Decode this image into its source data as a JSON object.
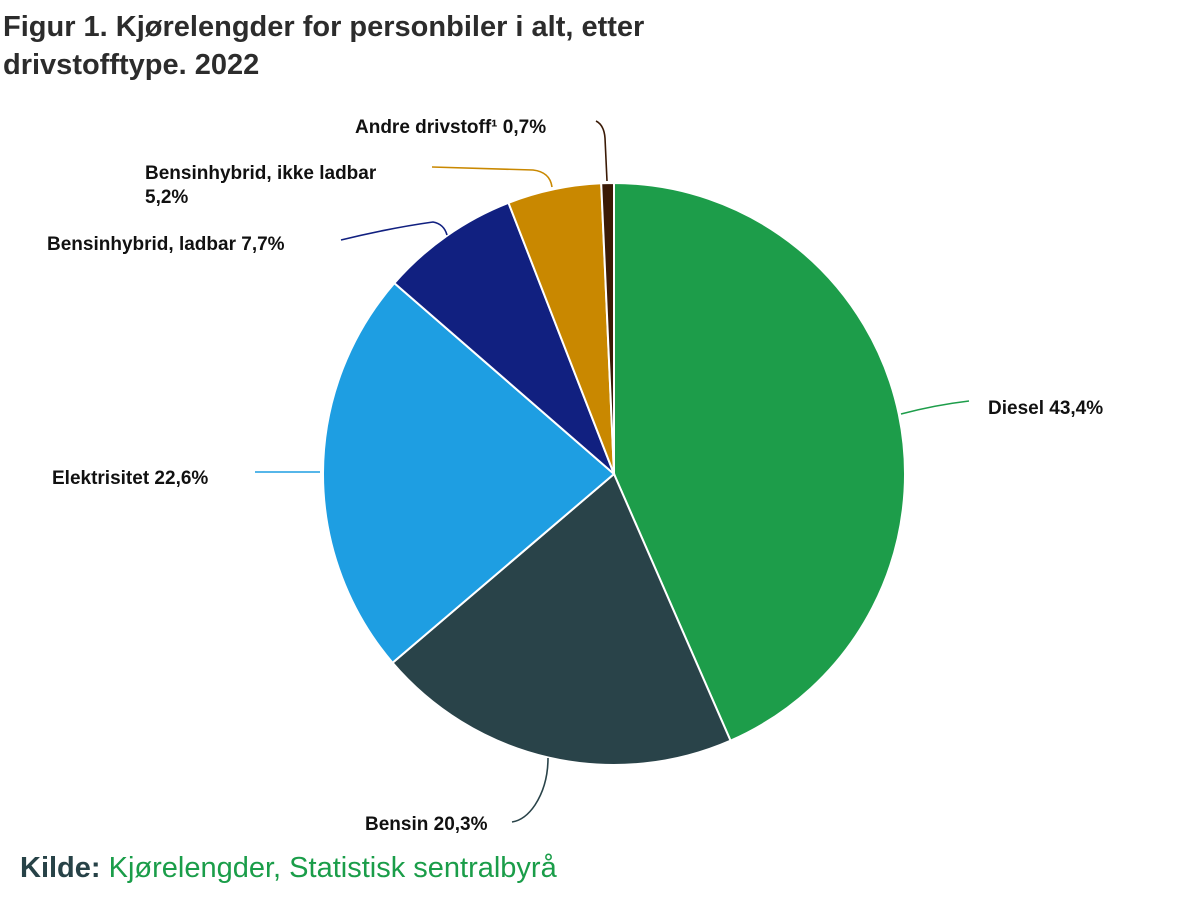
{
  "title": "Figur 1. Kjørelengder for personbiler i alt, etter drivstofftype. 2022",
  "chart_data": {
    "type": "pie",
    "title": "Figur 1. Kjørelengder for personbiler i alt, etter drivstofftype. 2022",
    "unit": "%",
    "slices": [
      {
        "label": "Diesel",
        "value": 43.4,
        "display": "Diesel 43,4%",
        "color": "#1d9d4a"
      },
      {
        "label": "Bensin",
        "value": 20.3,
        "display": "Bensin 20,3%",
        "color": "#294349"
      },
      {
        "label": "Elektrisitet",
        "value": 22.6,
        "display": "Elektrisitet 22,6%",
        "color": "#1e9ee2"
      },
      {
        "label": "Bensinhybrid, ladbar",
        "value": 7.7,
        "display": "Bensinhybrid, ladbar 7,7%",
        "color": "#112080"
      },
      {
        "label": "Bensinhybrid, ikke ladbar",
        "value": 5.2,
        "display": "Bensinhybrid, ikke ladbar 5,2%",
        "display_lines": [
          "Bensinhybrid, ikke ladbar",
          "5,2%"
        ],
        "color": "#c98800"
      },
      {
        "label": "Andre drivstoff¹",
        "value": 0.7,
        "display": "Andre drivstoff¹ 0,7%",
        "color": "#3a1a06"
      }
    ]
  },
  "source": {
    "label": "Kilde:",
    "value": "Kjørelengder, Statistisk sentralbyrå"
  }
}
